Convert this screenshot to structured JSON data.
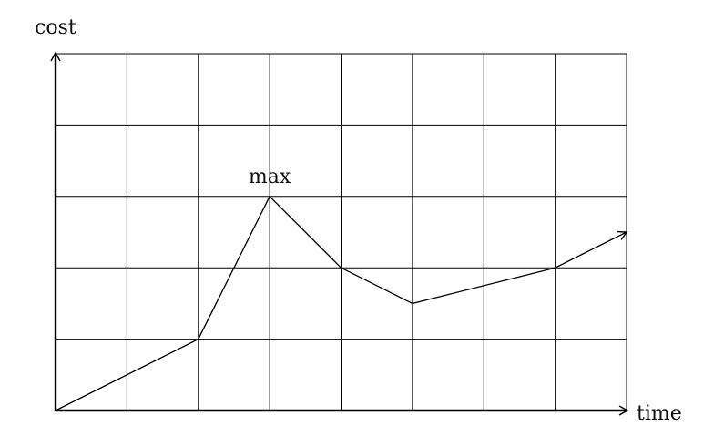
{
  "chart_data": {
    "type": "line",
    "xlabel": "time",
    "ylabel": "cost",
    "xlim": [
      0,
      8
    ],
    "ylim": [
      0,
      5
    ],
    "grid": true,
    "x": [
      0,
      2,
      3,
      4,
      5,
      7,
      8
    ],
    "y": [
      0,
      1,
      3,
      2,
      1.5,
      2,
      2.5
    ],
    "annotations": [
      {
        "text": "max",
        "x": 3,
        "y": 3
      }
    ]
  }
}
